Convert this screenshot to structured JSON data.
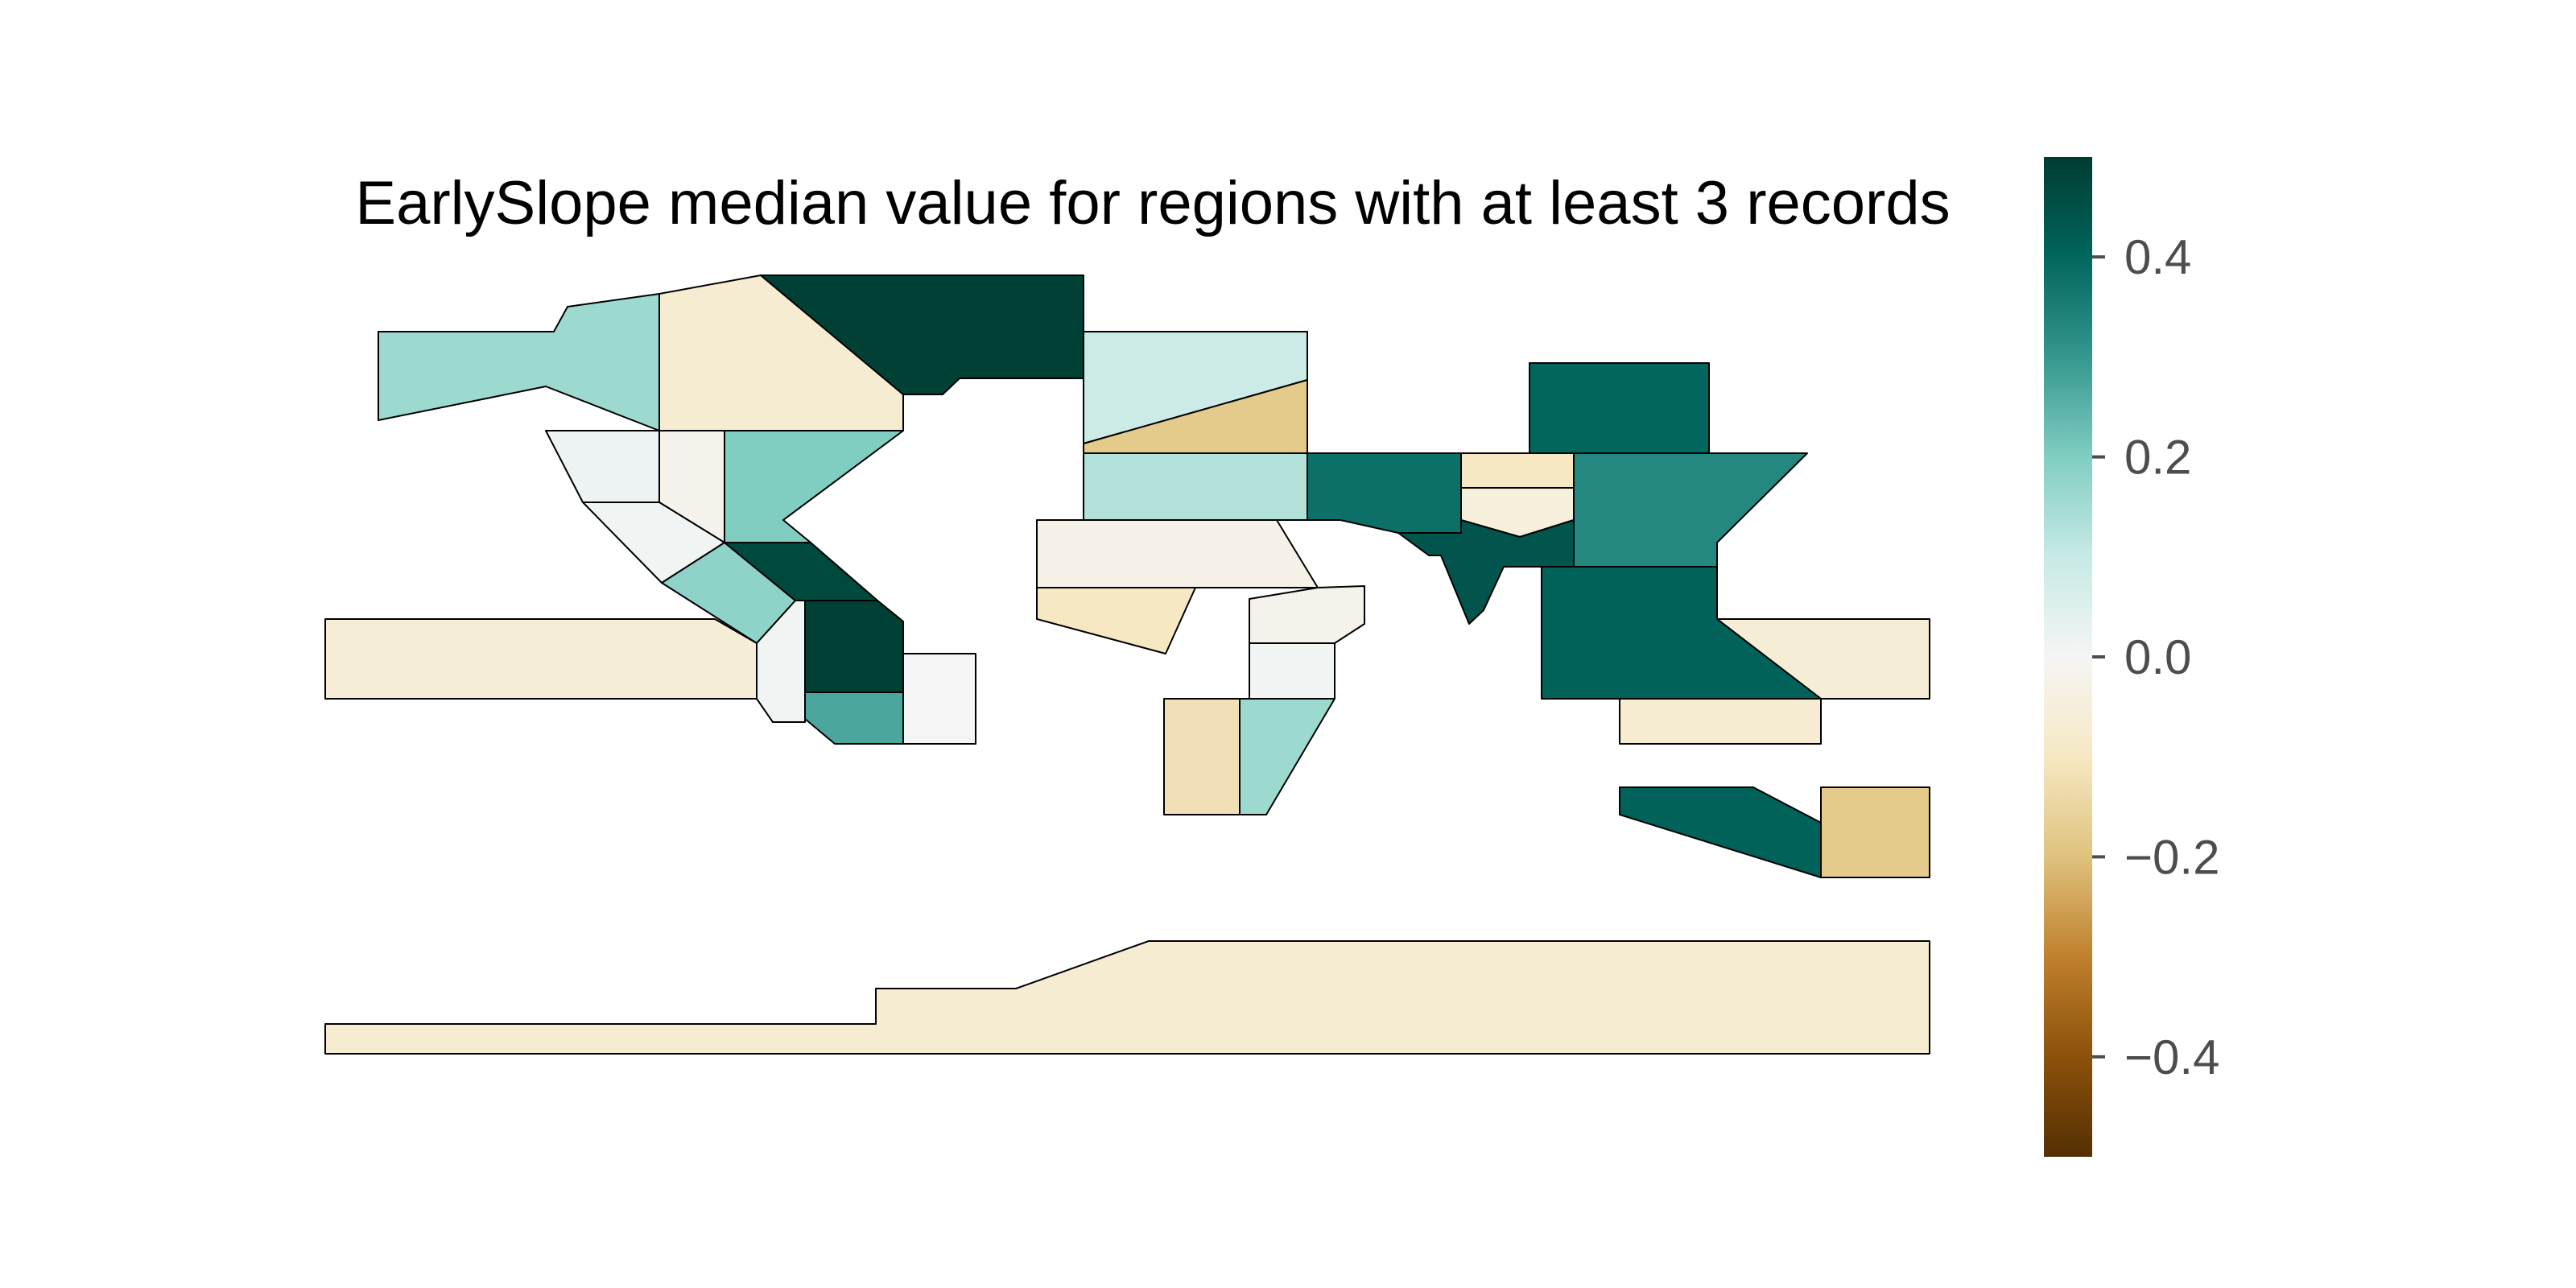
{
  "chart_data": {
    "type": "choropleth",
    "title": "EarlySlope median value for regions with at least 3 records",
    "colormap": "BrBG",
    "value_range": [
      -0.5,
      0.5
    ],
    "colorbar": {
      "ticks": [
        0.4,
        0.2,
        0.0,
        -0.2,
        -0.4
      ],
      "tick_labels": [
        "0.4",
        "0.2",
        "0.0",
        "−0.2",
        "−0.4"
      ],
      "colors": [
        "#003c30",
        "#01665e",
        "#35978f",
        "#80cdc1",
        "#c7eae5",
        "#f5f5f5",
        "#f6e8c3",
        "#dfc27d",
        "#bf812d",
        "#8c510a",
        "#543005"
      ]
    },
    "regions": [
      {
        "id": "r01",
        "value": 0.16
      },
      {
        "id": "r02",
        "value": -0.07
      },
      {
        "id": "r03",
        "value": 0.49
      },
      {
        "id": "r04",
        "value": 0.09
      },
      {
        "id": "r05",
        "value": -0.18
      },
      {
        "id": "r06",
        "value": 0.02
      },
      {
        "id": "r07",
        "value": -0.02
      },
      {
        "id": "r08",
        "value": 0.2
      },
      {
        "id": "r09",
        "value": 0.01
      },
      {
        "id": "r10",
        "value": 0.18
      },
      {
        "id": "r11",
        "value": 0.47
      },
      {
        "id": "r12",
        "value": -0.06
      },
      {
        "id": "r13",
        "value": 0.01
      },
      {
        "id": "r14",
        "value": 0.49
      },
      {
        "id": "r15",
        "value": 0.27
      },
      {
        "id": "r16",
        "value": 0.0
      },
      {
        "id": "r17",
        "value": 0.13
      },
      {
        "id": "r18",
        "value": -0.03
      },
      {
        "id": "r19",
        "value": -0.1
      },
      {
        "id": "r20",
        "value": 0.38
      },
      {
        "id": "r21",
        "value": -0.1
      },
      {
        "id": "r22",
        "value": -0.05
      },
      {
        "id": "r23",
        "value": 0.4
      },
      {
        "id": "r24",
        "value": 0.33
      },
      {
        "id": "r25",
        "value": -0.02
      },
      {
        "id": "r26",
        "value": 0.01
      },
      {
        "id": "r27",
        "value": -0.12
      },
      {
        "id": "r28",
        "value": 0.16
      },
      {
        "id": "r29",
        "value": 0.44
      },
      {
        "id": "r30",
        "value": -0.06
      },
      {
        "id": "r31",
        "value": 0.41
      },
      {
        "id": "r32",
        "value": 0.41
      },
      {
        "id": "r33",
        "value": -0.07
      },
      {
        "id": "r34",
        "value": -0.07
      },
      {
        "id": "r35",
        "value": -0.18
      },
      {
        "id": "r36",
        "value": -0.1
      }
    ]
  }
}
